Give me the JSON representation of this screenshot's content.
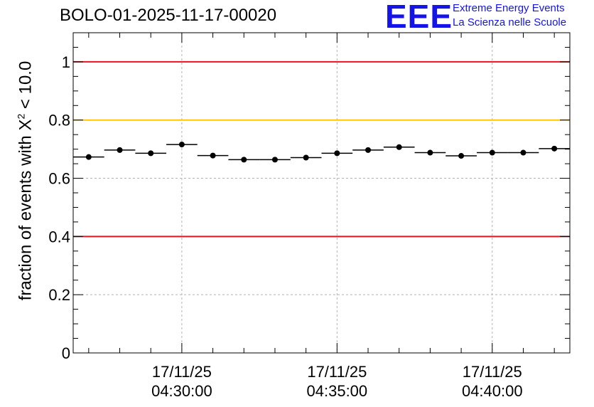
{
  "title": "BOLO-01-2025-11-17-00020",
  "logo": {
    "mark": "EEE",
    "line1": "Extreme Energy Events",
    "line2": "La Scienza nelle Scuole"
  },
  "colors": {
    "red_line": "#e8141e",
    "yellow_line": "#ffc800",
    "brand": "#1414e6",
    "grid": "#b4b4b4"
  },
  "chart_data": {
    "type": "scatter",
    "title": "BOLO-01-2025-11-17-00020",
    "ylabel": {
      "prefix": "fraction of events with ",
      "symbol": "X",
      "superscript": "2",
      "suffix": " < 10.0"
    },
    "xlabel": "",
    "ylim": [
      0,
      1.1
    ],
    "y_ticks": [
      0,
      0.2,
      0.4,
      0.6,
      0.8,
      1
    ],
    "y_tick_labels": [
      "0",
      "0.2",
      "0.4",
      "0.6",
      "0.8",
      "1"
    ],
    "x_range_minutes": [
      26.5,
      42.5
    ],
    "x_ticks": [
      {
        "minutes": 30,
        "date": "17/11/25",
        "time": "04:30:00"
      },
      {
        "minutes": 35,
        "date": "17/11/25",
        "time": "04:35:00"
      },
      {
        "minutes": 40,
        "date": "17/11/25",
        "time": "04:40:00"
      }
    ],
    "reference_lines": [
      {
        "y": 1.0,
        "color": "red"
      },
      {
        "y": 0.8,
        "color": "yellow"
      },
      {
        "y": 0.4,
        "color": "red"
      }
    ],
    "bin_width_minutes": 1,
    "points": [
      {
        "x": 27,
        "y": 0.673
      },
      {
        "x": 28,
        "y": 0.697
      },
      {
        "x": 29,
        "y": 0.686
      },
      {
        "x": 30,
        "y": 0.716
      },
      {
        "x": 31,
        "y": 0.678
      },
      {
        "x": 32,
        "y": 0.664
      },
      {
        "x": 33,
        "y": 0.664
      },
      {
        "x": 34,
        "y": 0.671
      },
      {
        "x": 35,
        "y": 0.686
      },
      {
        "x": 36,
        "y": 0.697
      },
      {
        "x": 37,
        "y": 0.707
      },
      {
        "x": 38,
        "y": 0.688
      },
      {
        "x": 39,
        "y": 0.677
      },
      {
        "x": 40,
        "y": 0.688
      },
      {
        "x": 41,
        "y": 0.688
      },
      {
        "x": 42,
        "y": 0.702
      }
    ]
  }
}
